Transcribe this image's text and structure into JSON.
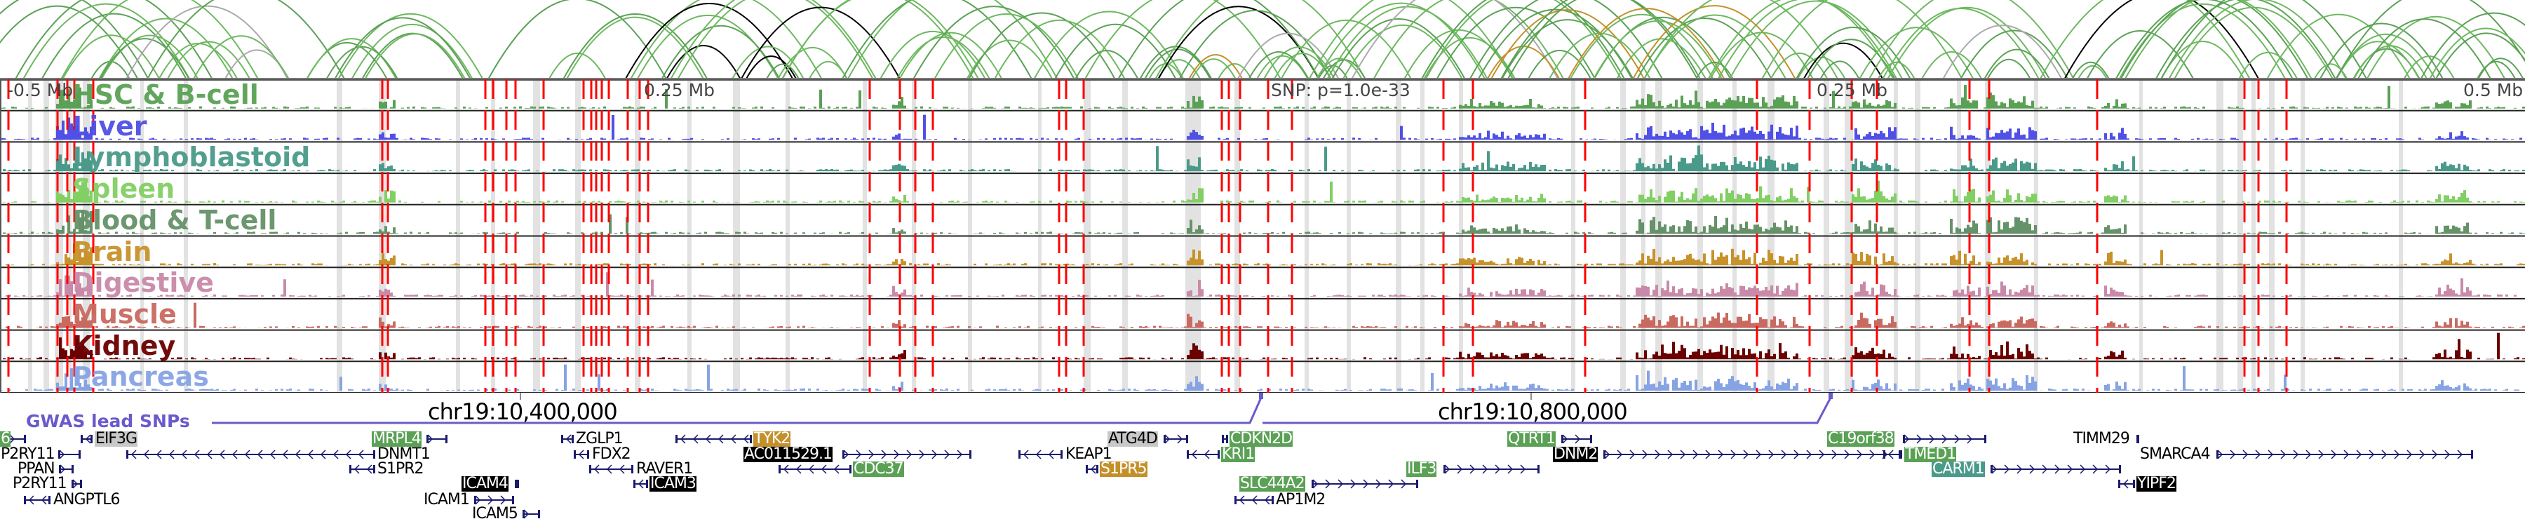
{
  "ruler": {
    "left": "-0.5 Mb",
    "mid_left": "0.25 Mb",
    "snp": "SNP: p=1.0e-33",
    "mid_right": "0.25 Mb",
    "right": "0.5 Mb"
  },
  "tracks": [
    {
      "name": "HSC & B-cell",
      "color": "#5aa155"
    },
    {
      "name": "Liver",
      "color": "#5050e6"
    },
    {
      "name": "Lymphoblastoid",
      "color": "#4a9a8a"
    },
    {
      "name": "Spleen",
      "color": "#82cf64"
    },
    {
      "name": "Blood & T-cell",
      "color": "#659268"
    },
    {
      "name": "Brain",
      "color": "#c8922a"
    },
    {
      "name": "Digestive",
      "color": "#c98aa9"
    },
    {
      "name": "Muscle",
      "color": "#c96a60"
    },
    {
      "name": "Kidney",
      "color": "#6b0000"
    },
    {
      "name": "Pancreas",
      "color": "#86a3e4"
    }
  ],
  "gwas": {
    "label": "GWAS lead SNPs",
    "color": "#6a5acd"
  },
  "coordinates": [
    "chr19:10,400,000",
    "chr19:10,800,000"
  ],
  "genes": [
    {
      "name": "6",
      "highlight": "#5aa155"
    },
    {
      "name": "EIF3G",
      "highlight": "#c8c8c8"
    },
    {
      "name": "P2RY11",
      "highlight": null
    },
    {
      "name": "PPAN",
      "highlight": null
    },
    {
      "name": "P2RY11",
      "highlight": null
    },
    {
      "name": "ANGPTL6",
      "highlight": null
    },
    {
      "name": "MRPL4",
      "highlight": "#5aa155"
    },
    {
      "name": "DNMT1",
      "highlight": null
    },
    {
      "name": "S1PR2",
      "highlight": null
    },
    {
      "name": "ICAM4",
      "highlight": "#000000"
    },
    {
      "name": "ICAM1",
      "highlight": null
    },
    {
      "name": "ICAM5",
      "highlight": null
    },
    {
      "name": "ZGLP1",
      "highlight": null
    },
    {
      "name": "FDX2",
      "highlight": null
    },
    {
      "name": "RAVER1",
      "highlight": null
    },
    {
      "name": "ICAM3",
      "highlight": "#000000"
    },
    {
      "name": "TYK2",
      "highlight": "#c4902a"
    },
    {
      "name": "AC011529.1",
      "highlight": "#000000"
    },
    {
      "name": "CDC37",
      "highlight": "#5aa155"
    },
    {
      "name": "ATG4D",
      "highlight": "#c8c8c8"
    },
    {
      "name": "KEAP1",
      "highlight": null
    },
    {
      "name": "S1PR5",
      "highlight": "#c4902a"
    },
    {
      "name": "CDKN2D",
      "highlight": "#5aa155"
    },
    {
      "name": "KRI1",
      "highlight": "#5aa155"
    },
    {
      "name": "SLC44A2",
      "highlight": "#5aa155"
    },
    {
      "name": "AP1M2",
      "highlight": null
    },
    {
      "name": "ILF3",
      "highlight": "#5aa155"
    },
    {
      "name": "QTRT1",
      "highlight": "#5aa155"
    },
    {
      "name": "DNM2",
      "highlight": "#000000"
    },
    {
      "name": "C19orf38",
      "highlight": "#5aa155"
    },
    {
      "name": "TMED1",
      "highlight": "#5aa155"
    },
    {
      "name": "CARM1",
      "highlight": "#4a9a8a"
    },
    {
      "name": "TIMM29",
      "highlight": null
    },
    {
      "name": "SMARCA4",
      "highlight": null
    },
    {
      "name": "YIPF2",
      "highlight": "#000000"
    }
  ],
  "colors": {
    "snp_line": "#ff0000",
    "gene_line": "#1a1a6e",
    "highlight_band": "#e2e2e2"
  }
}
